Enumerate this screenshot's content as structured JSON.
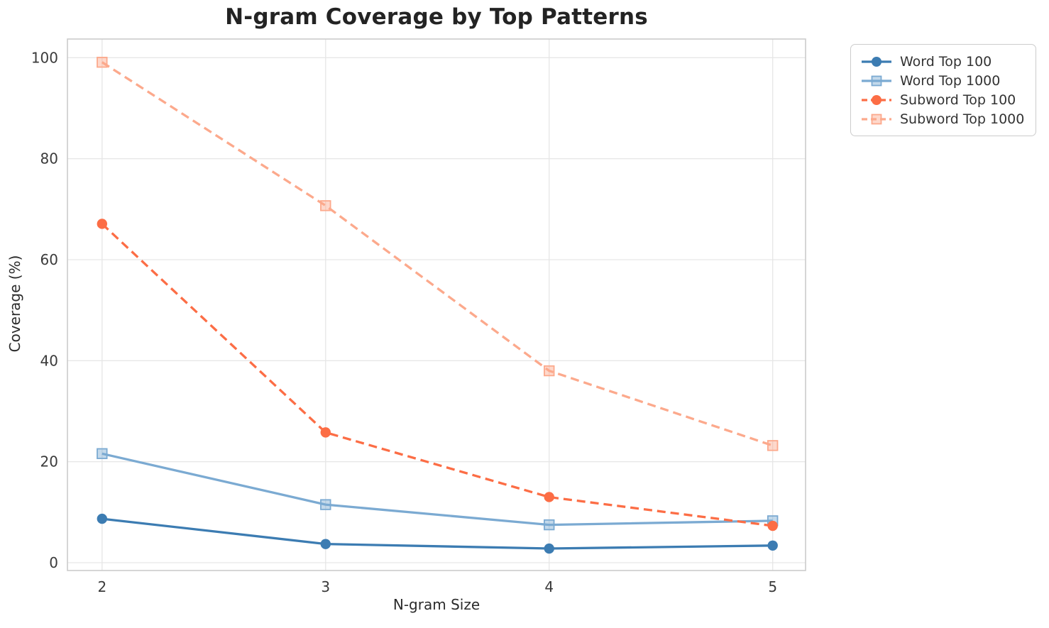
{
  "figure": {
    "background": "#ffffff",
    "grid_color": "#e6e6e6",
    "spine_color": "#cccccc",
    "tick_color": "#3a3a3a"
  },
  "chart_data": {
    "type": "line",
    "title": "N-gram Coverage by Top Patterns",
    "xlabel": "N-gram Size",
    "ylabel": "Coverage (%)",
    "x": [
      2,
      3,
      4,
      5
    ],
    "series": [
      {
        "name": "Word Top 100",
        "values": [
          8.7,
          3.7,
          2.8,
          3.4
        ],
        "color": "#3c7cb2",
        "line": "solid",
        "marker": "circle"
      },
      {
        "name": "Word Top 1000",
        "values": [
          21.6,
          11.5,
          7.5,
          8.3
        ],
        "color": "#7baad2",
        "line": "solid",
        "marker": "square"
      },
      {
        "name": "Subword Top 100",
        "values": [
          67.1,
          25.8,
          13.0,
          7.3
        ],
        "color": "#fc6d45",
        "line": "dashed",
        "marker": "circle"
      },
      {
        "name": "Subword Top 1000",
        "values": [
          99.1,
          70.7,
          38.0,
          23.2
        ],
        "color": "#fca98c",
        "line": "dashed",
        "marker": "square"
      }
    ],
    "xticks": [
      2,
      3,
      4,
      5
    ],
    "yticks": [
      0,
      20,
      40,
      60,
      80,
      100
    ],
    "xlim": [
      1.845,
      5.147
    ],
    "ylim": [
      -1.55,
      103.7
    ],
    "grid": true,
    "legend_position": "outside-upper-right"
  }
}
